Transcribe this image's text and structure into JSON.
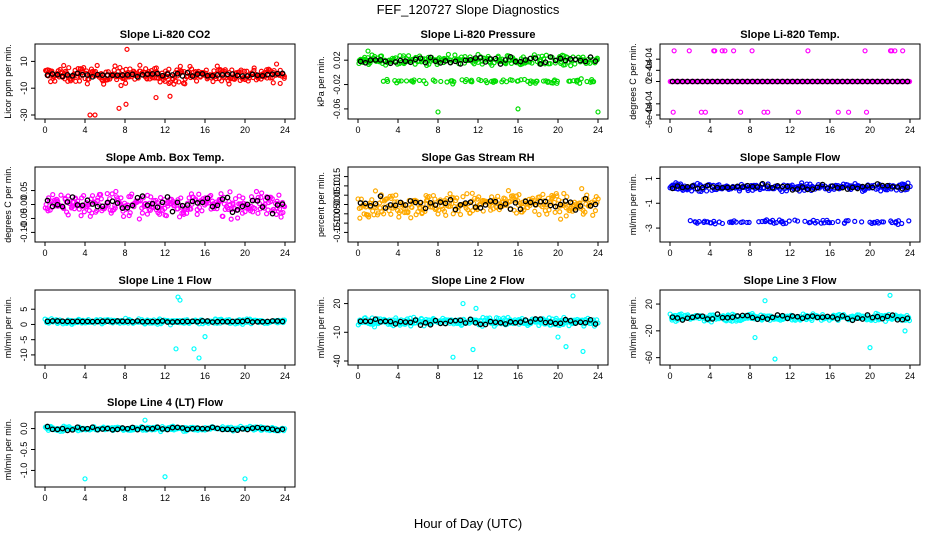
{
  "figure": {
    "title": "FEF_120727  Slope Diagnostics",
    "xlabel": "Hour of Day (UTC)"
  },
  "chart_data": [
    {
      "type": "scatter",
      "title": "Slope Li-820 CO2",
      "ylabel": "Licor ppm per min.",
      "color": "#ff0000",
      "xlim": [
        0,
        24
      ],
      "ylim": [
        -30,
        20
      ],
      "yticks": [
        -30,
        -10,
        10
      ],
      "xticks": [
        0,
        4,
        8,
        12,
        16,
        20,
        24
      ],
      "center": 0,
      "spread": 6,
      "outliers": [
        [
          8.2,
          19
        ],
        [
          7.6,
          -8
        ],
        [
          8.1,
          -22
        ],
        [
          7.4,
          -25
        ],
        [
          4.5,
          -30
        ],
        [
          5.0,
          -30
        ],
        [
          12.5,
          -16
        ],
        [
          11.1,
          -17
        ]
      ],
      "black_spread": 1.2
    },
    {
      "type": "scatter",
      "title": "Slope Li-820 Pressure",
      "ylabel": "kPa per min.",
      "color": "#00dd00",
      "xlim": [
        0,
        24
      ],
      "ylim": [
        -0.07,
        0.04
      ],
      "yticks": [
        -0.06,
        -0.02,
        0.02
      ],
      "xticks": [
        0,
        4,
        8,
        12,
        16,
        20,
        24
      ],
      "center": 0.02,
      "spread": 0.008,
      "band2": -0.015,
      "outliers": [
        [
          8,
          -0.065
        ],
        [
          16,
          -0.06
        ],
        [
          24,
          -0.065
        ],
        [
          1,
          0.035
        ]
      ],
      "black_spread": 0.005
    },
    {
      "type": "scatter",
      "title": "Slope Li-820 Temp.",
      "ylabel": "degrees C per min.",
      "color": "#ff00ff",
      "xlim": [
        0,
        24
      ],
      "ylim": [
        -0.0006,
        0.0006
      ],
      "yticks": [
        -0.0006,
        -0.0004,
        0,
        0.0002,
        0.0004
      ],
      "ytick_labels": [
        "-6e-04",
        "-4e-04",
        "0",
        "2e-04",
        "4e-04"
      ],
      "xticks": [
        0,
        4,
        8,
        12,
        16,
        20,
        24
      ],
      "center": 0,
      "spread": 0,
      "flat": true,
      "extremes": [
        0.00055,
        -0.00055
      ],
      "black_spread": 0
    },
    {
      "type": "scatter",
      "title": "Slope Amb. Box Temp.",
      "ylabel": "degrees C per min.",
      "color": "#ff00ff",
      "xlim": [
        0,
        24
      ],
      "ylim": [
        -0.12,
        0.12
      ],
      "yticks": [
        -0.1,
        -0.05,
        0,
        0.05
      ],
      "ytick_labels": [
        "-0.10",
        "-0.05",
        "0.00",
        "0.05"
      ],
      "xticks": [
        0,
        4,
        8,
        12,
        16,
        20,
        24
      ],
      "center": 0,
      "spread": 0.04,
      "black_spread": 0.03
    },
    {
      "type": "scatter",
      "title": "Slope Gas Stream RH",
      "ylabel": "percent per min.",
      "color": "#ffaa00",
      "xlim": [
        0,
        24
      ],
      "ylim": [
        -0.18,
        0.18
      ],
      "yticks": [
        -0.15,
        -0.1,
        -0.05,
        0,
        0.05,
        0.1,
        0.15
      ],
      "ytick_labels": [
        "-0.15",
        "-0.10",
        "-0.05",
        "0.00",
        "0.05",
        "0.10",
        "0.15"
      ],
      "xticks": [
        0,
        4,
        8,
        12,
        16,
        20,
        24
      ],
      "center": 0,
      "spread": 0.06,
      "black_spread": 0.04
    },
    {
      "type": "scatter",
      "title": "Slope Sample Flow",
      "ylabel": "ml/min per min.",
      "color": "#0000ff",
      "xlim": [
        0,
        24
      ],
      "ylim": [
        -3.8,
        1.6
      ],
      "yticks": [
        -3,
        -1,
        1
      ],
      "xticks": [
        0,
        4,
        8,
        12,
        16,
        20,
        24
      ],
      "center": 0.3,
      "spread": 0.3,
      "band2": -2.5,
      "black_spread": 0.25
    },
    {
      "type": "scatter",
      "title": "Slope Line 1 Flow",
      "ylabel": "ml/min per min.",
      "color": "#00ffff",
      "xlim": [
        0,
        24
      ],
      "ylim": [
        -12,
        10
      ],
      "yticks": [
        -10,
        -5,
        0,
        5
      ],
      "xticks": [
        0,
        4,
        8,
        12,
        16,
        20,
        24
      ],
      "center": 1,
      "spread": 0.8,
      "outliers": [
        [
          13.3,
          9
        ],
        [
          13.5,
          8
        ],
        [
          13.1,
          -8
        ],
        [
          14.9,
          -8
        ],
        [
          15.4,
          -11
        ],
        [
          16,
          -4
        ]
      ],
      "black_spread": 0.2
    },
    {
      "type": "scatter",
      "title": "Slope Line 2 Flow",
      "ylabel": "ml/min per min.",
      "color": "#00ffff",
      "xlim": [
        0,
        24
      ],
      "ylim": [
        -40,
        30
      ],
      "yticks": [
        -40,
        -10,
        20
      ],
      "xticks": [
        0,
        4,
        8,
        12,
        16,
        20,
        24
      ],
      "center": 1,
      "spread": 4,
      "outliers": [
        [
          10.5,
          20
        ],
        [
          11.8,
          15
        ],
        [
          21.5,
          28
        ],
        [
          20.8,
          -25
        ],
        [
          22.5,
          -30
        ],
        [
          11.5,
          -28
        ],
        [
          9.5,
          -36
        ],
        [
          20,
          -15
        ]
      ],
      "black_spread": 3
    },
    {
      "type": "scatter",
      "title": "Slope Line 3 Flow",
      "ylabel": "ml/min per min.",
      "color": "#00ffff",
      "xlim": [
        0,
        24
      ],
      "ylim": [
        -65,
        35
      ],
      "yticks": [
        -60,
        -20,
        20
      ],
      "xticks": [
        0,
        4,
        8,
        12,
        16,
        20,
        24
      ],
      "center": 0,
      "spread": 5,
      "outliers": [
        [
          9.5,
          25
        ],
        [
          10.5,
          -62
        ],
        [
          22,
          33
        ],
        [
          23.5,
          -20
        ],
        [
          20,
          -45
        ],
        [
          8.5,
          -30
        ]
      ],
      "black_spread": 4
    },
    {
      "type": "scatter",
      "title": "Slope Line 4 (LT) Flow",
      "ylabel": "ml/min per min.",
      "color": "#00ffff",
      "xlim": [
        0,
        24
      ],
      "ylim": [
        -1.3,
        0.3
      ],
      "yticks": [
        -1,
        -0.5,
        0
      ],
      "ytick_labels": [
        "-1.0",
        "-0.5",
        "0.0"
      ],
      "xticks": [
        0,
        4,
        8,
        12,
        16,
        20,
        24
      ],
      "center": 0,
      "spread": 0.05,
      "outliers": [
        [
          4,
          -1.2
        ],
        [
          12,
          -1.15
        ],
        [
          20,
          -1.2
        ],
        [
          10,
          0.2
        ]
      ],
      "black_spread": 0.04
    }
  ]
}
